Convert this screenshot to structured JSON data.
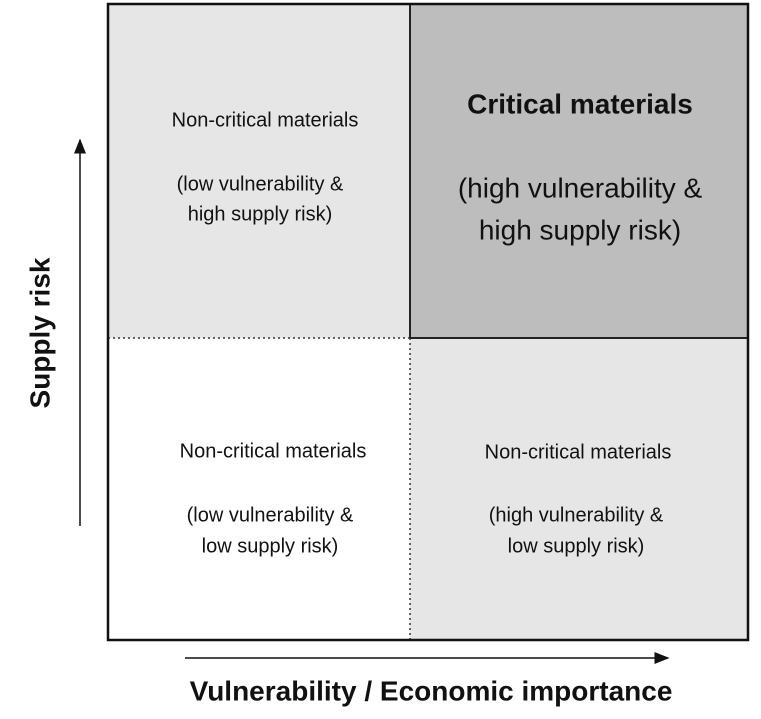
{
  "quadrants": [
    {
      "title": "Non-critical materials",
      "lines": [
        "(low vulnerability &",
        "high supply risk)"
      ]
    },
    {
      "title": "Critical materials",
      "lines": [
        "(high vulnerability &",
        "high supply risk)"
      ]
    },
    {
      "title": "Non-critical materials",
      "lines": [
        "(low vulnerability &",
        "low supply risk)"
      ]
    },
    {
      "title": "Non-critical materials",
      "lines": [
        "(high vulnerability &",
        "low supply risk)"
      ]
    }
  ],
  "axes": {
    "y_label": "Supply risk",
    "x_label": "Vulnerability / Economic importance"
  }
}
